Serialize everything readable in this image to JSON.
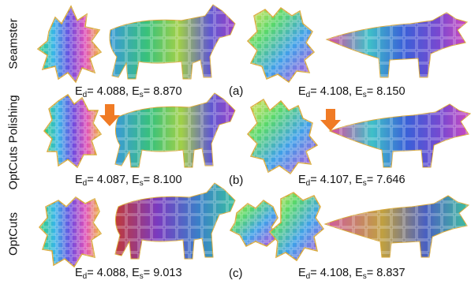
{
  "rows": [
    {
      "label": "Seamster",
      "tag": "(a)",
      "cow": {
        "ed": "4.088",
        "es": "8.870"
      },
      "triceratops": {
        "ed": "4.108",
        "es": "8.150"
      }
    },
    {
      "label": "OptCuts Polishing",
      "tag": "(b)",
      "cow": {
        "ed": "4.087",
        "es": "8.100"
      },
      "triceratops": {
        "ed": "4.107",
        "es": "7.646"
      }
    },
    {
      "label": "OptCuts",
      "tag": "(c)",
      "cow": {
        "ed": "4.088",
        "es": "9.013"
      },
      "triceratops": {
        "ed": "4.108",
        "es": "8.837"
      }
    }
  ],
  "colors": {
    "arrow": "#f07b25",
    "seam": "#d8a93a",
    "checker": "#ffffff"
  }
}
